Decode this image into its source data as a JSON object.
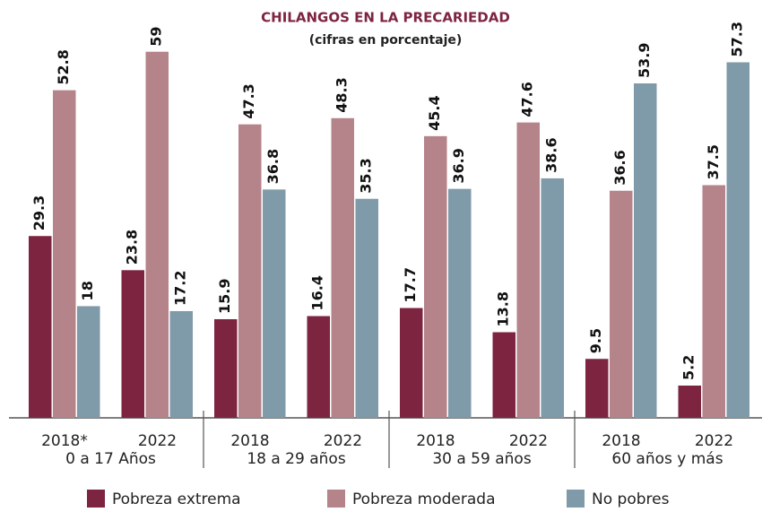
{
  "chart_data": {
    "type": "bar",
    "title": "CHILANGOS EN LA PRECARIEDAD",
    "subtitle": "(cifras en porcentaje)",
    "categories": [
      "2018*",
      "2022",
      "2018",
      "2022",
      "2018",
      "2022",
      "2018",
      "2022"
    ],
    "groups": [
      "0 a 17 Años",
      "18 a 29 años",
      "30 a 59 años",
      "60 años y más"
    ],
    "series": [
      {
        "name": "Pobreza extrema",
        "color": "#7d2440",
        "values": [
          29.3,
          23.8,
          15.9,
          16.4,
          17.7,
          13.8,
          9.5,
          5.2
        ]
      },
      {
        "name": "Pobreza moderada",
        "color": "#b5838a",
        "values": [
          52.8,
          59,
          47.3,
          48.3,
          45.4,
          47.6,
          36.6,
          37.5
        ]
      },
      {
        "name": "No pobres",
        "color": "#7f9aa8",
        "values": [
          18,
          17.2,
          36.8,
          35.3,
          36.9,
          38.6,
          53.9,
          57.3
        ]
      }
    ],
    "legend": "bottom"
  }
}
